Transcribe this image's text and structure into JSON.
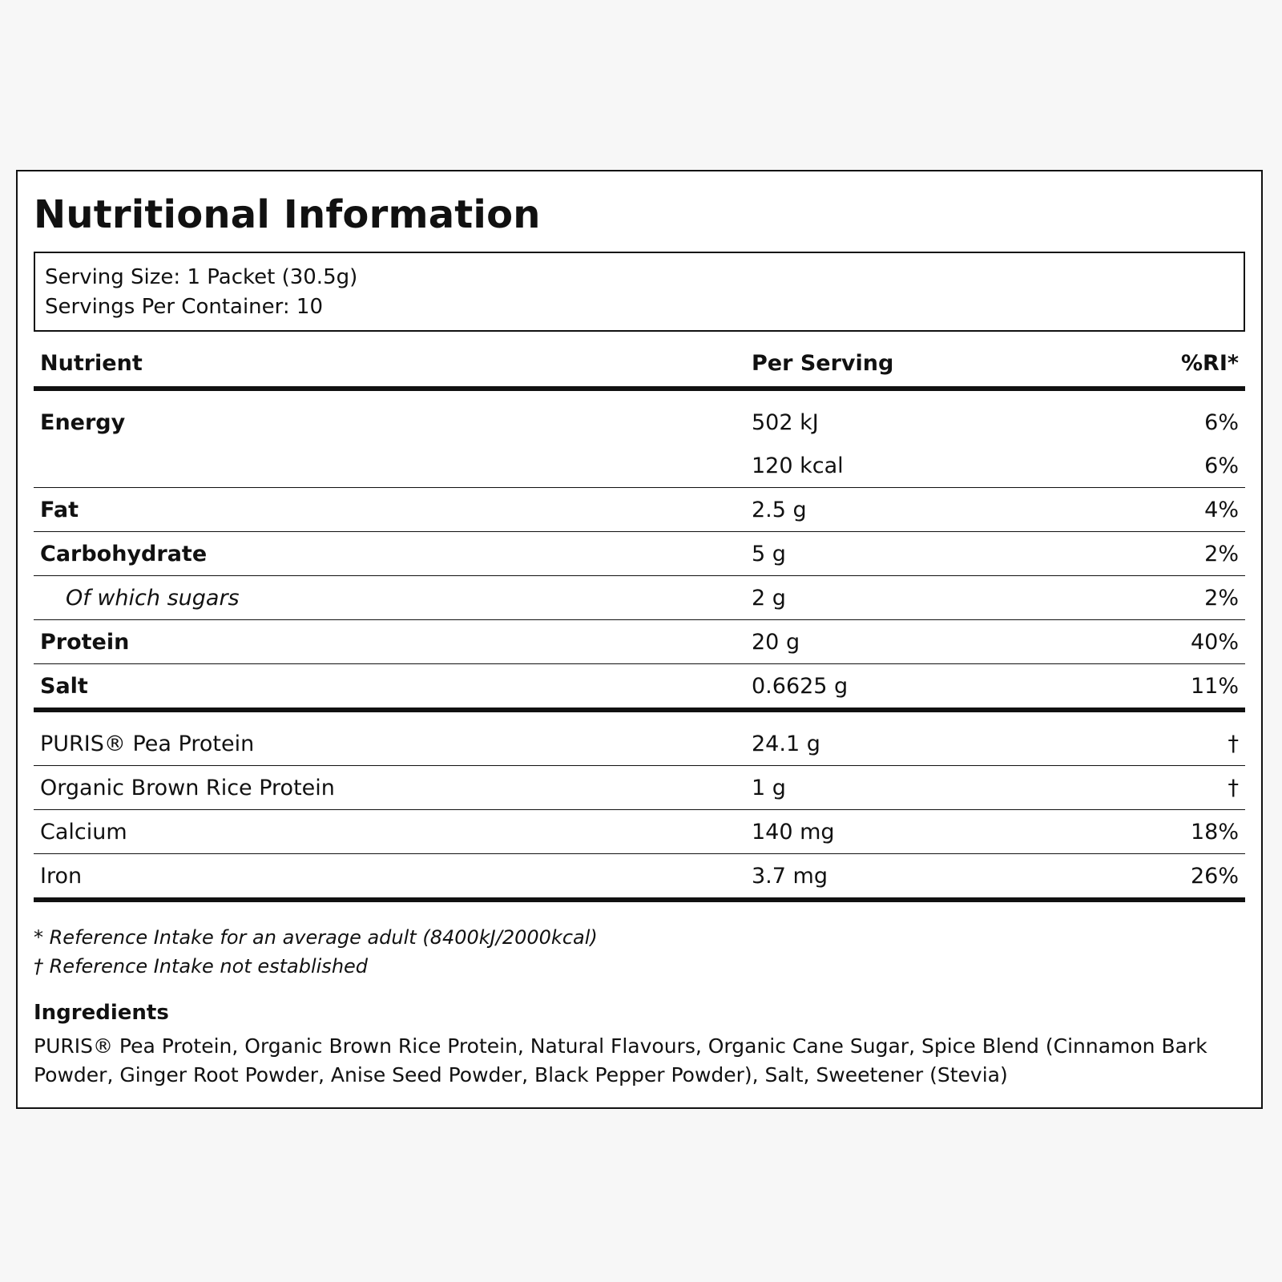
{
  "title": "Nutritional Information",
  "serving": {
    "size": "Serving Size: 1 Packet (30.5g)",
    "per_container": "Servings Per Container: 10"
  },
  "table": {
    "headers": {
      "nutrient": "Nutrient",
      "per_serving": "Per Serving",
      "ri": "%RI*"
    },
    "rows": [
      {
        "name": "Energy",
        "per": "502 kJ",
        "ri": "6%"
      },
      {
        "name": "",
        "per": "120 kcal",
        "ri": "6%"
      },
      {
        "name": "Fat",
        "per": "2.5 g",
        "ri": "4%"
      },
      {
        "name": "Carbohydrate",
        "per": "5 g",
        "ri": "2%"
      },
      {
        "name": "Of which sugars",
        "per": "2 g",
        "ri": "2%"
      },
      {
        "name": "Protein",
        "per": "20 g",
        "ri": "40%"
      },
      {
        "name": "Salt",
        "per": "0.6625 g",
        "ri": "11%"
      },
      {
        "name": "PURIS® Pea Protein",
        "per": "24.1 g",
        "ri": "†"
      },
      {
        "name": "Organic Brown Rice Protein",
        "per": "1 g",
        "ri": "†"
      },
      {
        "name": "Calcium",
        "per": "140 mg",
        "ri": "18%"
      },
      {
        "name": "Iron",
        "per": "3.7 mg",
        "ri": "26%"
      }
    ]
  },
  "footnotes": {
    "ri": "* Reference Intake for an average adult (8400kJ/2000kcal)",
    "not_established": "† Reference Intake not established"
  },
  "ingredients": {
    "title": "Ingredients",
    "text": "PURIS® Pea Protein, Organic Brown Rice Protein, Natural Flavours, Organic Cane Sugar, Spice Blend (Cinnamon Bark Powder, Ginger Root Powder, Anise Seed Powder, Black Pepper Powder), Salt, Sweetener (Stevia)"
  }
}
